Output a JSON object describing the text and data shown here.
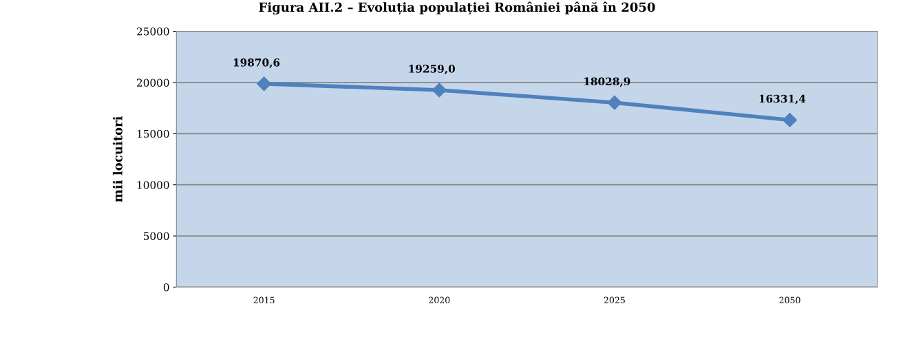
{
  "chart_data": {
    "type": "line",
    "title": "Figura AII.2 – Evoluția populației României până în 2050",
    "ylabel": "mii locuitori",
    "categories": [
      "2015",
      "2020",
      "2025",
      "2050"
    ],
    "series": [
      {
        "color": "#4f81bd",
        "values": [
          19870.6,
          19259.0,
          18028.9,
          16331.4
        ],
        "value_labels": [
          "19870,6",
          "19259,0",
          "18028,9",
          "16331,4"
        ]
      }
    ],
    "ylim": [
      0,
      25000
    ],
    "yticks": [
      0,
      5000,
      10000,
      15000,
      20000,
      25000
    ],
    "grid": "y",
    "marker": "diamond",
    "line_style": "solid"
  }
}
